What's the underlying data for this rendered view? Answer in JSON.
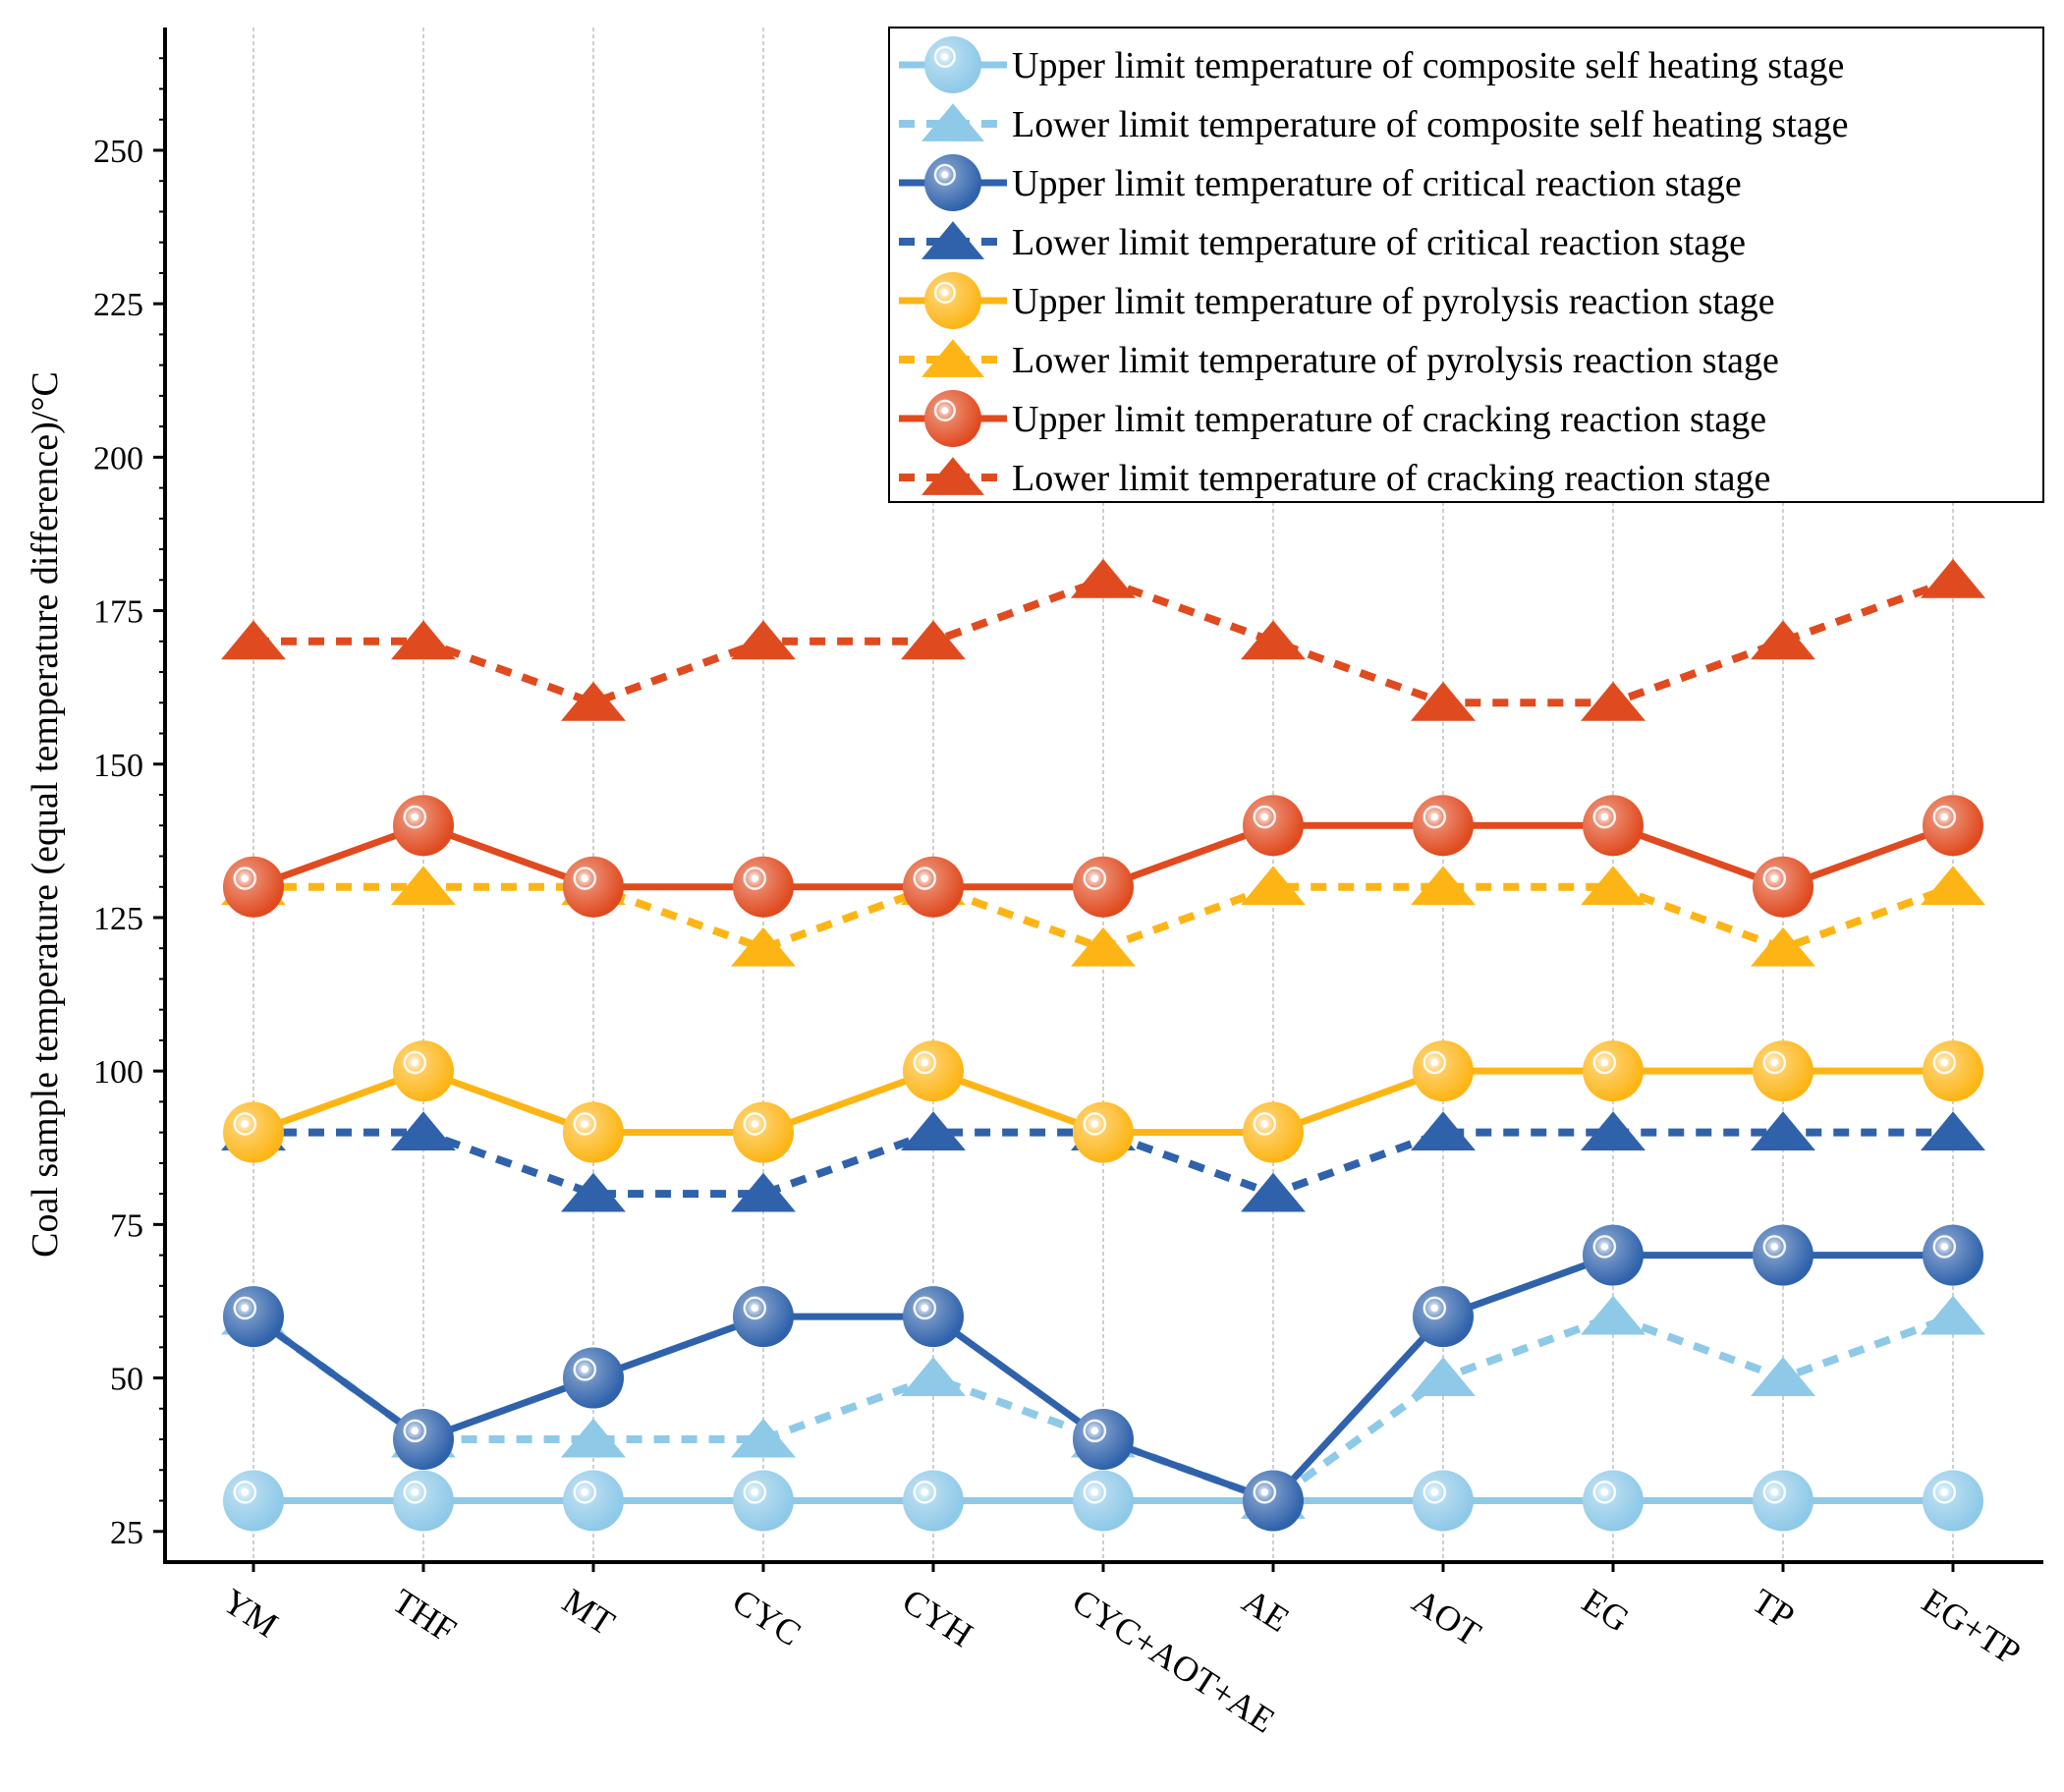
{
  "chart_data": {
    "type": "line",
    "title": "",
    "xlabel": "",
    "ylabel": "Coal sample temperature (equal temperature difference)/°C",
    "categories": [
      "YM",
      "THF",
      "MT",
      "CYC",
      "CYH",
      "CYC+AOT+AE",
      "AE",
      "AOT",
      "EG",
      "TP",
      "EG+TP"
    ],
    "ylim": [
      20,
      270
    ],
    "yticks": [
      25,
      50,
      75,
      100,
      125,
      150,
      175,
      200,
      225,
      250
    ],
    "grid": "vertical dashed lines at categories",
    "legend_position": "top-right",
    "series": [
      {
        "name": "Upper limit temperature of composite self heating stage",
        "color": "#8ec9e8",
        "dash": false,
        "marker": "circle",
        "values": [
          30,
          30,
          30,
          30,
          30,
          30,
          30,
          30,
          30,
          30,
          30
        ]
      },
      {
        "name": "Lower limit temperature of composite self heating stage",
        "color": "#8ec9e8",
        "dash": true,
        "marker": "triangle",
        "values": [
          60,
          40,
          40,
          40,
          50,
          40,
          30,
          50,
          60,
          50,
          60
        ]
      },
      {
        "name": "Upper limit temperature of critical reaction stage",
        "color": "#2f62ab",
        "dash": false,
        "marker": "circle",
        "values": [
          60,
          40,
          50,
          60,
          60,
          40,
          30,
          60,
          70,
          70,
          70
        ]
      },
      {
        "name": "Lower limit temperature of critical reaction stage",
        "color": "#2f62ab",
        "dash": true,
        "marker": "triangle",
        "values": [
          90,
          90,
          80,
          80,
          90,
          90,
          80,
          90,
          90,
          90,
          90
        ]
      },
      {
        "name": "Upper limit temperature of pyrolysis reaction stage",
        "color": "#fdb515",
        "dash": false,
        "marker": "circle",
        "values": [
          90,
          100,
          90,
          90,
          100,
          90,
          90,
          100,
          100,
          100,
          100
        ]
      },
      {
        "name": "Lower limit temperature of pyrolysis reaction stage",
        "color": "#fdb515",
        "dash": true,
        "marker": "triangle",
        "values": [
          130,
          130,
          130,
          120,
          130,
          120,
          130,
          130,
          130,
          120,
          130
        ]
      },
      {
        "name": "Upper limit temperature of cracking reaction stage",
        "color": "#e04a1f",
        "dash": false,
        "marker": "circle",
        "values": [
          130,
          140,
          130,
          130,
          130,
          130,
          140,
          140,
          140,
          130,
          140
        ]
      },
      {
        "name": "Lower limit temperature of cracking reaction stage",
        "color": "#e04a1f",
        "dash": true,
        "marker": "triangle",
        "values": [
          170,
          170,
          160,
          170,
          170,
          180,
          170,
          160,
          160,
          170,
          180
        ]
      }
    ]
  }
}
